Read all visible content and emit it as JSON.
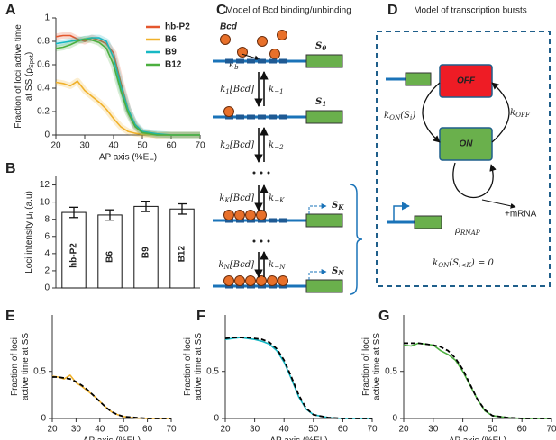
{
  "chart_data": [
    {
      "panel": "A",
      "type": "line",
      "band": true,
      "ylabel": [
        [
          "Fraction of loci active time"
        ],
        [
          "at SS (ρ",
          "Spot",
          ")"
        ]
      ],
      "xlabel": "AP axis (%EL)",
      "x": [
        20,
        22.5,
        25,
        27.5,
        30,
        32.5,
        35,
        37.5,
        40,
        42.5,
        45,
        47.5,
        50,
        55,
        60,
        65,
        70
      ],
      "xlim": [
        20,
        70
      ],
      "xticks": [
        20,
        30,
        40,
        50,
        60,
        70
      ],
      "ylim": [
        0,
        1
      ],
      "yticks": [
        0,
        0.2,
        0.4,
        0.6,
        0.8,
        1
      ],
      "legend": "upper right",
      "series": [
        {
          "name": "hb-P2",
          "color": "#e4572e",
          "values": [
            0.84,
            0.85,
            0.85,
            0.82,
            0.8,
            0.83,
            0.81,
            0.78,
            0.7,
            0.45,
            0.22,
            0.08,
            0.02,
            0,
            0,
            0,
            0
          ]
        },
        {
          "name": "B6",
          "color": "#f0b12b",
          "values": [
            0.45,
            0.44,
            0.42,
            0.46,
            0.38,
            0.33,
            0.28,
            0.22,
            0.14,
            0.07,
            0.03,
            0.015,
            0.005,
            0,
            0,
            0,
            0
          ]
        },
        {
          "name": "B9",
          "color": "#17b8c4",
          "values": [
            0.78,
            0.79,
            0.8,
            0.81,
            0.82,
            0.83,
            0.83,
            0.8,
            0.66,
            0.42,
            0.22,
            0.09,
            0.03,
            0.01,
            0,
            0,
            0
          ]
        },
        {
          "name": "B12",
          "color": "#4caf3f",
          "values": [
            0.74,
            0.75,
            0.77,
            0.8,
            0.82,
            0.81,
            0.79,
            0.74,
            0.6,
            0.38,
            0.19,
            0.07,
            0.02,
            0,
            0,
            0,
            0
          ]
        }
      ]
    },
    {
      "panel": "B",
      "type": "bar",
      "ylabel": [
        [
          "Loci intensity μ",
          "I",
          " (a.u)"
        ]
      ],
      "categories": [
        "hb-P2",
        "B6",
        "B9",
        "B12"
      ],
      "values": [
        8.8,
        8.5,
        9.5,
        9.2
      ],
      "errors": [
        0.6,
        0.6,
        0.6,
        0.6
      ],
      "color": "#ffffff",
      "label_colors": [
        "#e4572e",
        "#f0b12b",
        "#17b8c4",
        "#4caf3f"
      ],
      "ylim": [
        0,
        13
      ],
      "yticks": [
        0,
        2,
        4,
        6,
        8,
        10,
        12
      ]
    },
    {
      "panel": "E",
      "type": "line",
      "ylabel": [
        [
          "Fraction of loci"
        ],
        [
          "active time at SS"
        ]
      ],
      "xlabel": "AP axis (%EL)",
      "x": [
        20,
        22.5,
        25,
        27.5,
        30,
        32.5,
        35,
        37.5,
        40,
        42.5,
        45,
        47.5,
        50,
        55,
        60,
        65,
        70
      ],
      "xlim": [
        20,
        70
      ],
      "xticks": [
        20,
        30,
        40,
        50,
        60,
        70
      ],
      "ylim": [
        0,
        1.1
      ],
      "yticks": [
        0,
        0.5
      ],
      "series": [
        {
          "color": "#f0b12b",
          "values": [
            0.45,
            0.44,
            0.42,
            0.46,
            0.38,
            0.34,
            0.29,
            0.24,
            0.18,
            0.12,
            0.07,
            0.04,
            0.02,
            0.005,
            0,
            0,
            0
          ]
        },
        {
          "color": "#000000",
          "style": "dashed",
          "values": [
            0.44,
            0.44,
            0.43,
            0.42,
            0.39,
            0.35,
            0.3,
            0.24,
            0.18,
            0.12,
            0.07,
            0.04,
            0.02,
            0.01,
            0,
            0,
            0
          ]
        }
      ]
    },
    {
      "panel": "F",
      "type": "line",
      "ylabel": [
        [
          "Fraction of loci"
        ],
        [
          "active time at SS"
        ]
      ],
      "xlabel": "AP axis (%EL)",
      "x": [
        20,
        22.5,
        25,
        27.5,
        30,
        32.5,
        35,
        37.5,
        40,
        42.5,
        45,
        47.5,
        50,
        55,
        60,
        65,
        70
      ],
      "xlim": [
        20,
        70
      ],
      "xticks": [
        20,
        30,
        40,
        50,
        60,
        70
      ],
      "ylim": [
        0,
        1.1
      ],
      "yticks": [
        0,
        0.5
      ],
      "series": [
        {
          "color": "#17b8c4",
          "values": [
            0.84,
            0.85,
            0.86,
            0.85,
            0.84,
            0.82,
            0.79,
            0.72,
            0.6,
            0.42,
            0.23,
            0.1,
            0.04,
            0.01,
            0,
            0,
            0
          ]
        },
        {
          "color": "#000000",
          "style": "dashed",
          "values": [
            0.85,
            0.86,
            0.86,
            0.86,
            0.85,
            0.84,
            0.81,
            0.74,
            0.62,
            0.44,
            0.25,
            0.11,
            0.04,
            0.01,
            0,
            0,
            0
          ]
        }
      ]
    },
    {
      "panel": "G",
      "type": "line",
      "ylabel": [
        [
          "Fraction of loci"
        ],
        [
          "active time at SS"
        ]
      ],
      "xlabel": "AP axis (%EL)",
      "x": [
        20,
        22.5,
        25,
        27.5,
        30,
        32.5,
        35,
        37.5,
        40,
        42.5,
        45,
        47.5,
        50,
        55,
        60,
        65,
        70
      ],
      "xlim": [
        20,
        70
      ],
      "xticks": [
        20,
        30,
        40,
        50,
        60,
        70
      ],
      "ylim": [
        0,
        1.1
      ],
      "yticks": [
        0,
        0.5
      ],
      "series": [
        {
          "color": "#4caf3f",
          "values": [
            0.78,
            0.77,
            0.8,
            0.79,
            0.78,
            0.72,
            0.68,
            0.62,
            0.5,
            0.35,
            0.2,
            0.08,
            0.03,
            0.01,
            0,
            0,
            0
          ]
        },
        {
          "color": "#000000",
          "style": "dashed",
          "values": [
            0.8,
            0.8,
            0.8,
            0.79,
            0.78,
            0.76,
            0.72,
            0.64,
            0.52,
            0.36,
            0.2,
            0.09,
            0.03,
            0.01,
            0,
            0,
            0
          ]
        }
      ]
    }
  ],
  "diagrams": {
    "C": {
      "panel": "C",
      "title": "Model of Bcd binding/unbinding",
      "molecule": "Bcd",
      "k_b": [
        "k",
        "b"
      ],
      "states": [
        [
          "S",
          "0"
        ],
        [
          "S",
          "1"
        ],
        [
          "S",
          "K"
        ],
        [
          "S",
          "N"
        ]
      ],
      "transitions": [
        {
          "forward": [
            "k",
            "1",
            "[Bcd]"
          ],
          "backward": [
            "k",
            "−1"
          ]
        },
        {
          "forward": [
            "k",
            "2",
            "[Bcd]"
          ],
          "backward": [
            "k",
            "−2"
          ]
        },
        {
          "forward": [
            "k",
            "K",
            "[Bcd]"
          ],
          "backward": [
            "k",
            "−K"
          ]
        },
        {
          "forward": [
            "k",
            "N",
            "[Bcd]"
          ],
          "backward": [
            "k",
            "−N"
          ]
        }
      ]
    },
    "D": {
      "panel": "D",
      "title": "Model of transcription bursts",
      "off": "OFF",
      "on": "ON",
      "k_on": [
        "k",
        "ON",
        "(S",
        "i",
        ")"
      ],
      "k_off": [
        "k",
        "OFF"
      ],
      "rho": [
        "ρ",
        "RNAP"
      ],
      "product": "+mRNA",
      "condition": [
        "k",
        "ON",
        "(S",
        "i<K",
        ") = 0"
      ]
    }
  }
}
